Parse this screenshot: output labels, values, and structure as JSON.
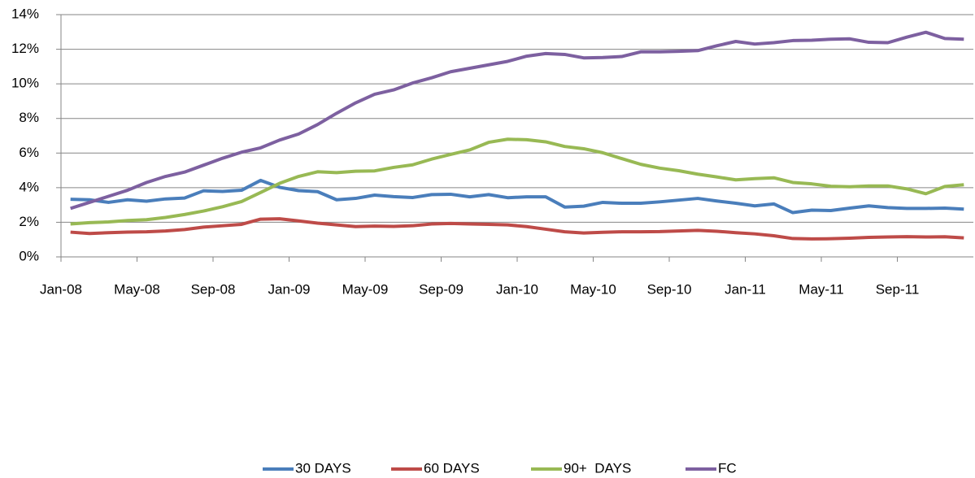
{
  "chart_data": {
    "type": "line",
    "categories": [
      "Jan-08",
      null,
      null,
      null,
      "May-08",
      null,
      null,
      null,
      "Sep-08",
      null,
      null,
      null,
      "Jan-09",
      null,
      null,
      null,
      "May-09",
      null,
      null,
      null,
      "Sep-09",
      null,
      null,
      null,
      "Jan-10",
      null,
      null,
      null,
      "May-10",
      null,
      null,
      null,
      "Sep-10",
      null,
      null,
      null,
      "Jan-11",
      null,
      null,
      null,
      "May-11",
      null,
      null,
      null,
      "Sep-11",
      null,
      null,
      null
    ],
    "series": [
      {
        "name": "30 DAYS",
        "color": "#4a7ebb",
        "values": [
          3.33,
          3.3,
          3.15,
          3.3,
          3.22,
          3.35,
          3.4,
          3.82,
          3.78,
          3.85,
          4.42,
          4.02,
          3.83,
          3.77,
          3.3,
          3.38,
          3.57,
          3.48,
          3.43,
          3.6,
          3.62,
          3.47,
          3.6,
          3.42,
          3.47,
          3.47,
          2.88,
          2.93,
          3.15,
          3.1,
          3.1,
          3.18,
          3.28,
          3.38,
          3.23,
          3.1,
          2.95,
          3.06,
          2.56,
          2.7,
          2.68,
          2.82,
          2.95,
          2.85,
          2.8,
          2.8,
          2.82,
          2.76
        ]
      },
      {
        "name": "60 DAYS",
        "color": "#be4b48",
        "values": [
          1.43,
          1.35,
          1.4,
          1.43,
          1.45,
          1.5,
          1.58,
          1.72,
          1.8,
          1.88,
          2.18,
          2.2,
          2.08,
          1.95,
          1.85,
          1.75,
          1.78,
          1.76,
          1.8,
          1.9,
          1.93,
          1.9,
          1.88,
          1.85,
          1.75,
          1.6,
          1.45,
          1.38,
          1.42,
          1.45,
          1.45,
          1.46,
          1.5,
          1.53,
          1.48,
          1.4,
          1.33,
          1.22,
          1.06,
          1.04,
          1.05,
          1.08,
          1.13,
          1.15,
          1.17,
          1.15,
          1.16,
          1.1
        ]
      },
      {
        "name": "90+  DAYS",
        "color": "#98b954",
        "values": [
          1.9,
          1.98,
          2.02,
          2.1,
          2.15,
          2.28,
          2.45,
          2.65,
          2.9,
          3.2,
          3.72,
          4.25,
          4.65,
          4.92,
          4.87,
          4.95,
          4.97,
          5.17,
          5.32,
          5.65,
          5.92,
          6.18,
          6.62,
          6.8,
          6.77,
          6.65,
          6.38,
          6.25,
          6.02,
          5.68,
          5.35,
          5.13,
          4.98,
          4.78,
          4.62,
          4.45,
          4.52,
          4.57,
          4.3,
          4.22,
          4.08,
          4.05,
          4.1,
          4.1,
          3.93,
          3.65,
          4.07,
          4.17
        ]
      },
      {
        "name": "FC",
        "color": "#7d60a0",
        "values": [
          2.8,
          3.15,
          3.5,
          3.85,
          4.3,
          4.65,
          4.9,
          5.3,
          5.7,
          6.05,
          6.3,
          6.75,
          7.1,
          7.65,
          8.3,
          8.9,
          9.4,
          9.65,
          10.05,
          10.35,
          10.7,
          10.9,
          11.1,
          11.3,
          11.6,
          11.75,
          11.7,
          11.5,
          11.52,
          11.58,
          11.85,
          11.85,
          11.88,
          11.92,
          12.2,
          12.45,
          12.3,
          12.38,
          12.5,
          12.52,
          12.58,
          12.6,
          12.4,
          12.38,
          12.7,
          12.98,
          12.62,
          12.58
        ]
      }
    ],
    "ylim": [
      0,
      14
    ],
    "yticks": [
      {
        "value": 0,
        "label": "0%"
      },
      {
        "value": 2,
        "label": "2%"
      },
      {
        "value": 4,
        "label": "4%"
      },
      {
        "value": 6,
        "label": "6%"
      },
      {
        "value": 8,
        "label": "8%"
      },
      {
        "value": 10,
        "label": "10%"
      },
      {
        "value": 12,
        "label": "12%"
      },
      {
        "value": 14,
        "label": "14%"
      }
    ],
    "grid": true,
    "legend": "bottom"
  }
}
